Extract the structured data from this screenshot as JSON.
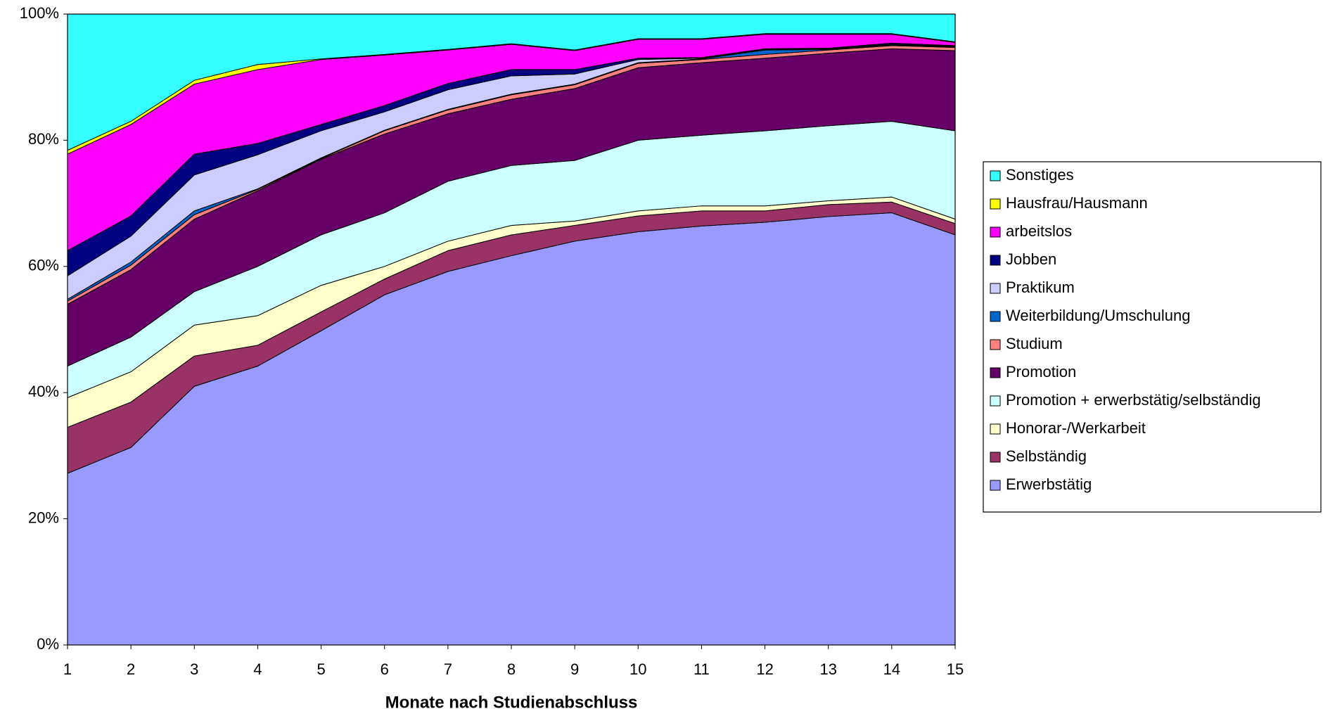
{
  "chart_data": {
    "type": "stacked_area",
    "x_label": "Monate nach Studienabschluss",
    "x": [
      1,
      2,
      3,
      4,
      5,
      6,
      7,
      8,
      9,
      10,
      11,
      12,
      13,
      14,
      15
    ],
    "xlim": [
      1,
      15
    ],
    "xticks": [
      1,
      2,
      3,
      4,
      5,
      6,
      7,
      8,
      9,
      10,
      11,
      12,
      13,
      14,
      15
    ],
    "ylim": [
      0,
      100
    ],
    "yticks": [
      {
        "value": 0,
        "label": "0%"
      },
      {
        "value": 20,
        "label": "20%"
      },
      {
        "value": 40,
        "label": "40%"
      },
      {
        "value": 60,
        "label": "60%"
      },
      {
        "value": 80,
        "label": "80%"
      },
      {
        "value": 100,
        "label": "100%"
      }
    ],
    "grid": false,
    "legend": "right",
    "series": [
      {
        "name": "Erwerbstätig",
        "color": "#9999ff",
        "values": [
          27.2,
          31.3,
          41,
          44.2,
          49.8,
          55.5,
          59.2,
          61.7,
          64,
          65.5,
          66.4,
          67,
          67.9,
          68.5,
          65
        ]
      },
      {
        "name": "Selbständig",
        "color": "#993366",
        "values": [
          7.3,
          7.2,
          4.8,
          3.3,
          3,
          2.5,
          3.3,
          3.3,
          2.5,
          2.5,
          2.4,
          1.8,
          1.9,
          1.7,
          1.8
        ]
      },
      {
        "name": "Honorar-/Werkarbeit",
        "color": "#ffffcc",
        "values": [
          4.7,
          4.8,
          4.9,
          4.7,
          4.2,
          2,
          1.5,
          1.5,
          0.7,
          0.8,
          0.8,
          0.8,
          0.6,
          0.8,
          0.7
        ]
      },
      {
        "name": "Promotion + erwerbstätig/selbständig",
        "color": "#ccffff",
        "values": [
          5,
          5.5,
          5.3,
          7.8,
          8,
          8.5,
          9.5,
          9.5,
          9.6,
          11.2,
          11.2,
          11.9,
          11.9,
          12,
          14
        ]
      },
      {
        "name": "Promotion",
        "color": "#660066",
        "values": [
          9.8,
          10.7,
          11.5,
          12,
          12,
          12.5,
          10.7,
          10.5,
          11.4,
          11.5,
          11.5,
          11.5,
          11.5,
          11.5,
          12.7
        ]
      },
      {
        "name": "Studium",
        "color": "#ff8080",
        "values": [
          0.5,
          0.7,
          0.7,
          0.2,
          0.1,
          0.5,
          0.6,
          0.7,
          0.6,
          0.7,
          0.5,
          0.6,
          0.5,
          0.5,
          0.5
        ]
      },
      {
        "name": "Weiterbildung/Umschulung",
        "color": "#0066cc",
        "values": [
          0.3,
          0.5,
          0.6,
          0.1,
          0.1,
          0.1,
          0.1,
          0.1,
          0.1,
          0.1,
          0.1,
          0.7,
          0.1,
          0.1,
          0.1
        ]
      },
      {
        "name": "Praktikum",
        "color": "#ccccff",
        "values": [
          3.7,
          4.1,
          5.7,
          5.4,
          4.3,
          2.9,
          3.1,
          2.9,
          1.6,
          0.5,
          0.1,
          0.1,
          0.1,
          0.1,
          0.1
        ]
      },
      {
        "name": "Jobben",
        "color": "#000080",
        "values": [
          4,
          3.2,
          3.3,
          1.8,
          1,
          1,
          1,
          1,
          0.7,
          0.2,
          0.1,
          0.1,
          0.1,
          0.2,
          0.1
        ]
      },
      {
        "name": "arbeitslos",
        "color": "#ff00ff",
        "values": [
          15.3,
          14.5,
          11.1,
          11.7,
          10.3,
          8,
          5.3,
          4,
          3,
          3,
          2.9,
          2.3,
          2.2,
          1.4,
          0.5
        ]
      },
      {
        "name": "Hausfrau/Hausmann",
        "color": "#ffff00",
        "values": [
          0.6,
          0.5,
          0.6,
          0.8,
          0.1,
          0.1,
          0.1,
          0.1,
          0.1,
          0.1,
          0.1,
          0.1,
          0.1,
          0.1,
          0.1
        ]
      },
      {
        "name": "Sonstiges",
        "color": "#33ffff",
        "values": [
          21.6,
          17,
          10.5,
          8,
          7.1,
          6.4,
          5.6,
          4.7,
          5.7,
          3.9,
          3.9,
          3.1,
          3.1,
          3.1,
          4.4
        ]
      }
    ]
  }
}
